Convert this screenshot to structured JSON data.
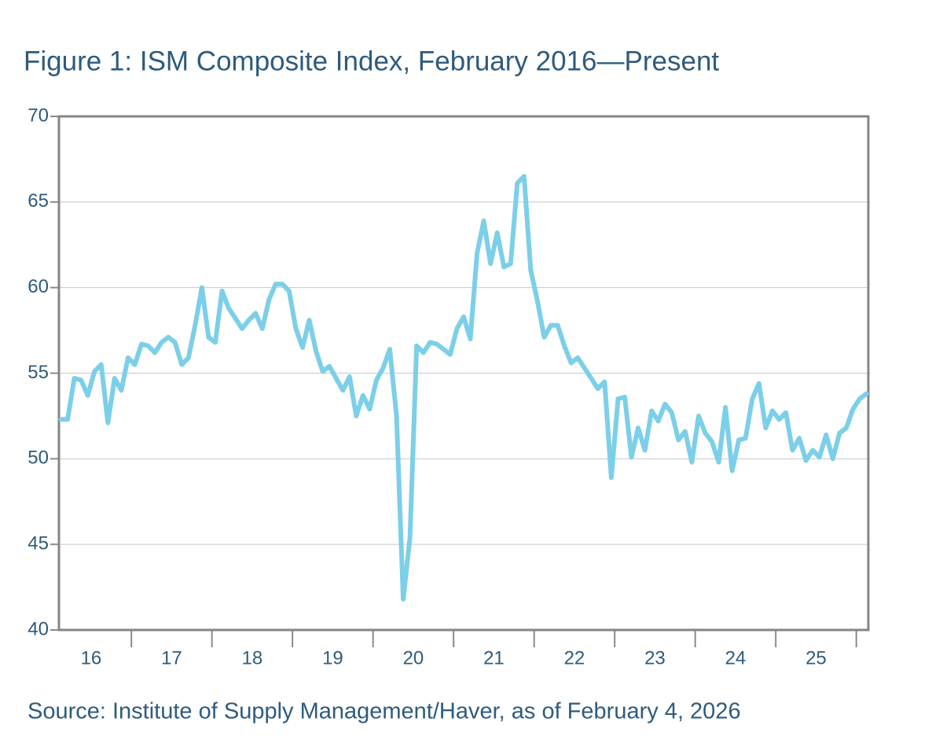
{
  "chart_data": {
    "type": "line",
    "title": "Figure 1: ISM Composite Index, February 2016—Present",
    "source": "Source: Institute of Supply Management/Haver, as of February 4, 2026",
    "color": "#7ccfe8",
    "grid": true,
    "ylim": [
      40,
      70
    ],
    "yticks": [
      40,
      45,
      50,
      55,
      60,
      65,
      70
    ],
    "categories": [
      null,
      null,
      null,
      null,
      null,
      "16",
      null,
      null,
      null,
      null,
      null,
      null,
      null,
      null,
      null,
      null,
      null,
      "17",
      null,
      null,
      null,
      null,
      null,
      null,
      null,
      null,
      null,
      null,
      null,
      "18",
      null,
      null,
      null,
      null,
      null,
      null,
      null,
      null,
      null,
      null,
      null,
      "19",
      null,
      null,
      null,
      null,
      null,
      null,
      null,
      null,
      null,
      null,
      null,
      "20",
      null,
      null,
      null,
      null,
      null,
      null,
      null,
      null,
      null,
      null,
      null,
      "21",
      null,
      null,
      null,
      null,
      null,
      null,
      null,
      null,
      null,
      null,
      null,
      "22",
      null,
      null,
      null,
      null,
      null,
      null,
      null,
      null,
      null,
      null,
      null,
      "23",
      null,
      null,
      null,
      null,
      null,
      null,
      null,
      null,
      null,
      null,
      null,
      "24",
      null,
      null,
      null,
      null,
      null,
      null,
      null,
      null,
      null,
      null,
      null,
      "25",
      null,
      null,
      null,
      null,
      null,
      null,
      null
    ],
    "values": [
      52.3,
      52.3,
      54.7,
      54.6,
      53.7,
      55.1,
      55.5,
      52.1,
      54.7,
      54.0,
      55.9,
      55.5,
      56.7,
      56.6,
      56.2,
      56.8,
      57.1,
      56.8,
      55.5,
      55.9,
      57.8,
      60.0,
      57.1,
      56.8,
      59.8,
      58.8,
      58.2,
      57.6,
      58.1,
      58.5,
      57.6,
      59.3,
      60.2,
      60.2,
      59.8,
      57.6,
      56.5,
      58.1,
      56.3,
      55.1,
      55.4,
      54.7,
      54.0,
      54.8,
      52.5,
      53.7,
      52.9,
      54.6,
      55.3,
      56.4,
      52.5,
      41.8,
      45.4,
      56.6,
      56.2,
      56.8,
      56.7,
      56.4,
      56.1,
      57.6,
      58.3,
      57.0,
      62.0,
      63.9,
      61.4,
      63.2,
      61.2,
      61.4,
      66.1,
      66.5,
      61.0,
      59.2,
      57.1,
      57.8,
      57.8,
      56.6,
      55.6,
      55.9,
      55.3,
      54.7,
      54.1,
      54.5,
      48.9,
      53.5,
      53.6,
      50.1,
      51.8,
      50.5,
      52.8,
      52.2,
      53.2,
      52.7,
      51.1,
      51.6,
      49.8,
      52.5,
      51.5,
      51.0,
      49.8,
      53.0,
      49.3,
      51.1,
      51.2,
      53.5,
      54.4,
      51.8,
      52.8,
      52.3,
      52.7,
      50.5,
      51.2,
      49.9,
      50.5,
      50.1,
      51.4,
      50.0,
      51.5,
      51.8,
      52.9,
      53.5,
      53.8
    ]
  }
}
